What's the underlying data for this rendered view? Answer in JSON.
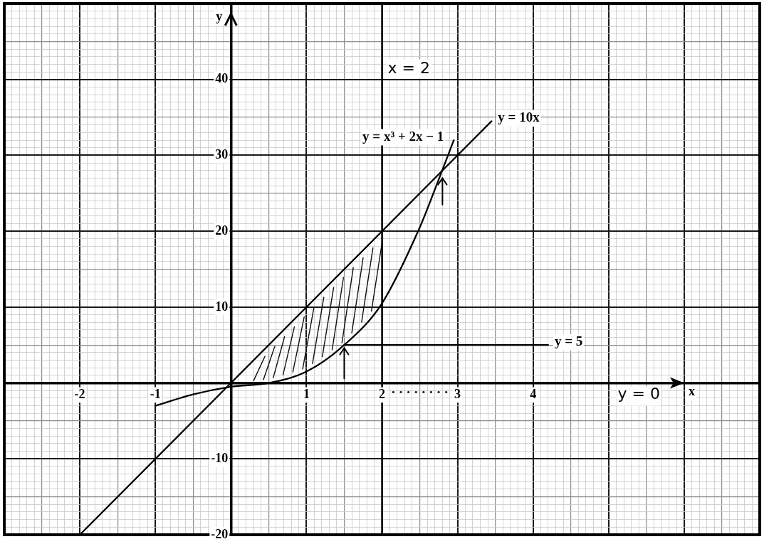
{
  "chart_data": {
    "type": "line",
    "xlabel": "x",
    "ylabel": "y",
    "xlim": [
      -3,
      7
    ],
    "ylim": [
      -20,
      50
    ],
    "xticks": [
      {
        "value": -3,
        "label": null
      },
      {
        "value": -2.9,
        "label": null
      },
      {
        "value": -2.8,
        "label": null
      },
      {
        "value": -2.7,
        "label": null
      },
      {
        "value": -2.6,
        "label": null
      },
      {
        "value": -2.5,
        "label": null
      },
      {
        "value": -2.4,
        "label": null
      },
      {
        "value": -2.3,
        "label": null
      },
      {
        "value": -2.2,
        "label": null
      },
      {
        "value": -2.1,
        "label": null
      },
      -2,
      {
        "value": -1.9,
        "label": null
      },
      {
        "value": -1.8,
        "label": null
      },
      {
        "value": -1.7,
        "label": null
      },
      {
        "value": -1.6,
        "label": null
      },
      {
        "value": -1.5,
        "label": null
      },
      {
        "value": -1.4,
        "label": null
      },
      {
        "value": -1.3,
        "label": null
      },
      {
        "value": -1.2,
        "label": null
      },
      {
        "value": -1.1,
        "label": null
      },
      -1,
      {
        "value": -0.9,
        "label": null
      },
      {
        "value": -0.8,
        "label": null
      },
      {
        "value": -0.7,
        "label": null
      },
      {
        "value": -0.6,
        "label": null
      },
      {
        "value": -0.5,
        "label": null
      },
      {
        "value": -0.4,
        "label": null
      },
      {
        "value": -0.3,
        "label": null
      },
      {
        "value": -0.2,
        "label": null
      },
      {
        "value": -0.1,
        "label": null
      },
      {
        "value": 0,
        "label": null
      },
      {
        "value": 0.1,
        "label": null
      },
      {
        "value": 0.2,
        "label": null
      },
      {
        "value": 0.3,
        "label": null
      },
      {
        "value": 0.4,
        "label": null
      },
      {
        "value": 0.5,
        "label": null
      },
      {
        "value": 0.6,
        "label": null
      },
      {
        "value": 0.7,
        "label": null
      },
      {
        "value": 0.8,
        "label": null
      },
      {
        "value": 0.9,
        "label": null
      },
      1,
      {
        "value": 1.1,
        "label": null
      },
      {
        "value": 1.2,
        "label": null
      },
      {
        "value": 1.3,
        "label": null
      },
      {
        "value": 1.4,
        "label": null
      },
      {
        "value": 1.5,
        "label": null
      },
      {
        "value": 1.6,
        "label": null
      },
      {
        "value": 1.7,
        "label": null
      },
      {
        "value": 1.8,
        "label": null
      },
      {
        "value": 1.9,
        "label": null
      },
      2,
      {
        "value": 2.1,
        "label": null
      },
      {
        "value": 2.2,
        "label": null
      },
      {
        "value": 2.3,
        "label": null
      },
      {
        "value": 2.4,
        "label": null
      },
      {
        "value": 2.5,
        "label": null
      },
      {
        "value": 2.6,
        "label": null
      },
      {
        "value": 2.7,
        "label": null
      },
      {
        "value": 2.8,
        "label": null
      },
      {
        "value": 2.9,
        "label": null
      },
      3,
      {
        "value": 3.1,
        "label": null
      },
      {
        "value": 3.2,
        "label": null
      },
      {
        "value": 3.3,
        "label": null
      },
      {
        "value": 3.4,
        "label": null
      },
      {
        "value": 3.5,
        "label": null
      },
      {
        "value": 3.6,
        "label": null
      },
      {
        "value": 3.7,
        "label": null
      },
      {
        "value": 3.8,
        "label": null
      },
      {
        "value": 3.9,
        "label": null
      },
      4,
      {
        "value": 4.1,
        "label": null
      },
      {
        "value": 4.2,
        "label": null
      },
      {
        "value": 4.3,
        "label": null
      },
      {
        "value": 4.4,
        "label": null
      },
      {
        "value": 4.5,
        "label": null
      },
      {
        "value": 4.6,
        "label": null
      },
      {
        "value": 4.7,
        "label": null
      },
      {
        "value": 4.8,
        "label": null
      },
      {
        "value": 4.9,
        "label": null
      },
      {
        "value": 5,
        "label": null
      },
      {
        "value": 5.1,
        "label": null
      },
      {
        "value": 5.2,
        "label": null
      },
      {
        "value": 5.3,
        "label": null
      },
      {
        "value": 5.4,
        "label": null
      },
      {
        "value": 5.5,
        "label": null
      },
      {
        "value": 5.6,
        "label": null
      },
      {
        "value": 5.7,
        "label": null
      },
      {
        "value": 5.8,
        "label": null
      },
      {
        "value": 5.9,
        "label": null
      },
      {
        "value": 6,
        "label": null
      },
      {
        "value": 6.1,
        "label": null
      },
      {
        "value": 6.2,
        "label": null
      },
      {
        "value": 6.3,
        "label": null
      },
      {
        "value": 6.4,
        "label": null
      },
      {
        "value": 6.5,
        "label": null
      },
      {
        "value": 6.6,
        "label": null
      },
      {
        "value": 6.7,
        "label": null
      },
      {
        "value": 6.8,
        "label": null
      },
      {
        "value": 6.9,
        "label": null
      },
      {
        "value": 7,
        "label": null
      }
    ],
    "yticks": [
      -20,
      {
        "value": -19,
        "label": null
      },
      {
        "value": -18,
        "label": null
      },
      {
        "value": -17,
        "label": null
      },
      {
        "value": -16,
        "label": null
      },
      {
        "value": -15,
        "label": null
      },
      {
        "value": -14,
        "label": null
      },
      {
        "value": -13,
        "label": null
      },
      {
        "value": -12,
        "label": null
      },
      {
        "value": -11,
        "label": null
      },
      -10,
      {
        "value": -9,
        "label": null
      },
      {
        "value": -8,
        "label": null
      },
      {
        "value": -7,
        "label": null
      },
      {
        "value": -6,
        "label": null
      },
      {
        "value": -5,
        "label": null
      },
      {
        "value": -4,
        "label": null
      },
      {
        "value": -3,
        "label": null
      },
      {
        "value": -2,
        "label": null
      },
      {
        "value": -1,
        "label": null
      },
      {
        "value": 0,
        "label": null
      },
      {
        "value": 1,
        "label": null
      },
      {
        "value": 2,
        "label": null
      },
      {
        "value": 3,
        "label": null
      },
      {
        "value": 4,
        "label": null
      },
      {
        "value": 5,
        "label": null
      },
      {
        "value": 6,
        "label": null
      },
      {
        "value": 7,
        "label": null
      },
      {
        "value": 8,
        "label": null
      },
      {
        "value": 9,
        "label": null
      },
      10,
      {
        "value": 11,
        "label": null
      },
      {
        "value": 12,
        "label": null
      },
      {
        "value": 13,
        "label": null
      },
      {
        "value": 14,
        "label": null
      },
      {
        "value": 15,
        "label": null
      },
      {
        "value": 16,
        "label": null
      },
      {
        "value": 17,
        "label": null
      },
      {
        "value": 18,
        "label": null
      },
      {
        "value": 19,
        "label": null
      },
      20,
      {
        "value": 21,
        "label": null
      },
      {
        "value": 22,
        "label": null
      },
      {
        "value": 23,
        "label": null
      },
      {
        "value": 24,
        "label": null
      },
      {
        "value": 25,
        "label": null
      },
      {
        "value": 26,
        "label": null
      },
      {
        "value": 27,
        "label": null
      },
      {
        "value": 28,
        "label": null
      },
      {
        "value": 29,
        "label": null
      },
      30,
      {
        "value": 31,
        "label": null
      },
      {
        "value": 32,
        "label": null
      },
      {
        "value": 33,
        "label": null
      },
      {
        "value": 34,
        "label": null
      },
      {
        "value": 35,
        "label": null
      },
      {
        "value": 36,
        "label": null
      },
      {
        "value": 37,
        "label": null
      },
      {
        "value": 38,
        "label": null
      },
      {
        "value": 39,
        "label": null
      },
      40,
      {
        "value": 41,
        "label": null
      },
      {
        "value": 42,
        "label": null
      },
      {
        "value": 43,
        "label": null
      },
      {
        "value": 44,
        "label": null
      },
      {
        "value": 45,
        "label": null
      },
      {
        "value": 46,
        "label": null
      },
      {
        "value": 47,
        "label": null
      },
      {
        "value": 48,
        "label": null
      },
      {
        "value": 49,
        "label": null
      },
      {
        "value": 50,
        "label": null
      }
    ],
    "grid": true,
    "marker": "none",
    "line_style": "solid",
    "series": [
      {
        "name": "y = 10x",
        "color": "#000000",
        "x": [
          -2,
          3.45
        ],
        "values": [
          -20,
          34.5
        ]
      },
      {
        "name": "y = x³ + 2x − 1",
        "color": "#000000",
        "x": [
          -1,
          -0.5,
          0,
          0.5,
          1,
          1.5,
          2,
          2.5,
          2.7,
          2.95
        ],
        "values": [
          -3,
          -1.5,
          -0.5,
          0,
          1.5,
          5,
          10.5,
          20.5,
          25.5,
          32
        ]
      },
      {
        "name": "y = 5",
        "color": "#000000",
        "x": [
          1.5,
          4.2
        ],
        "values": [
          5,
          5
        ]
      }
    ],
    "ref_lines": [
      {
        "axis": "x",
        "value": 2,
        "label": "x = 2",
        "color": "#000000"
      }
    ],
    "annotations": [
      "y = 0"
    ]
  }
}
